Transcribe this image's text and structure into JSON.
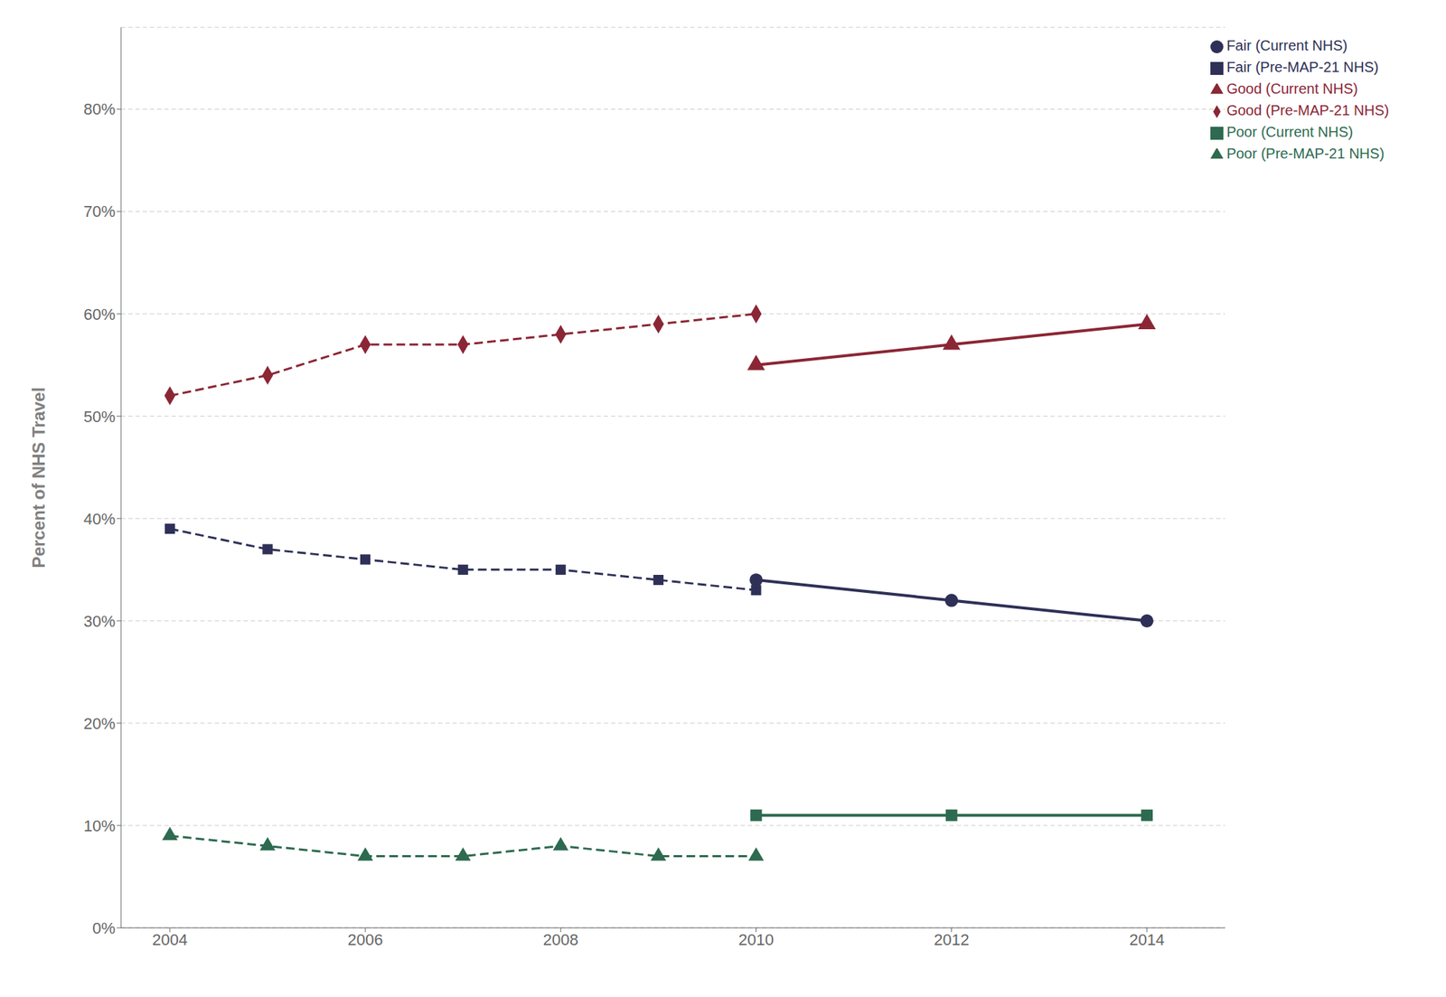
{
  "chart_data": {
    "type": "line",
    "ylabel": "Percent of NHS Travel",
    "x": [
      2004,
      2005,
      2006,
      2007,
      2008,
      2009,
      2010,
      2012,
      2014
    ],
    "series": [
      {
        "name": "Good (Pre-MAP-21 NHS)",
        "color": "#8B2635",
        "marker": "diamond",
        "line_style": "dashed",
        "values": [
          52,
          54,
          57,
          57,
          58,
          59,
          60,
          null,
          null
        ]
      },
      {
        "name": "Fair (Pre-MAP-21 NHS)",
        "color": "#2E3057",
        "marker": "square",
        "line_style": "dashed",
        "values": [
          39,
          37,
          36,
          35,
          35,
          34,
          33,
          null,
          null
        ]
      },
      {
        "name": "Poor (Pre-MAP-21 NHS)",
        "color": "#2D6A4F",
        "marker": "triangle",
        "line_style": "dashed",
        "values": [
          9,
          8,
          7,
          7,
          8,
          7,
          7,
          null,
          null
        ]
      },
      {
        "name": "Good (Current NHS)",
        "color": "#8B2635",
        "marker": "triangle",
        "line_style": "solid",
        "values": [
          null,
          null,
          null,
          null,
          null,
          null,
          55,
          57,
          59
        ]
      },
      {
        "name": "Fair (Current NHS)",
        "color": "#2E3057",
        "marker": "circle",
        "line_style": "solid",
        "values": [
          null,
          null,
          null,
          null,
          null,
          null,
          34,
          32,
          30
        ]
      },
      {
        "name": "Poor (Current NHS)",
        "color": "#2D6A4F",
        "marker": "square",
        "line_style": "solid",
        "values": [
          null,
          null,
          null,
          null,
          null,
          null,
          11,
          11,
          11
        ]
      }
    ],
    "xlim": [
      2003.5,
      2014.8
    ],
    "xticks": [
      2004,
      2006,
      2008,
      2010,
      2012,
      2014
    ],
    "ylim": [
      0,
      88
    ],
    "yticks": [
      {
        "value": 0,
        "label": "0%"
      },
      {
        "value": 10,
        "label": "10%"
      },
      {
        "value": 20,
        "label": "20%"
      },
      {
        "value": 30,
        "label": "30%"
      },
      {
        "value": 40,
        "label": "40%"
      },
      {
        "value": 50,
        "label": "50%"
      },
      {
        "value": 60,
        "label": "60%"
      },
      {
        "value": 70,
        "label": "70%"
      },
      {
        "value": 80,
        "label": "80%"
      }
    ],
    "grid": "y",
    "legend": "upper right"
  }
}
